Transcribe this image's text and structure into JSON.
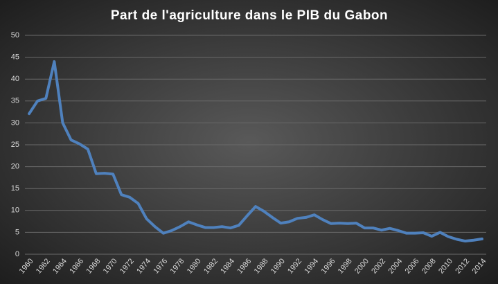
{
  "chart_data": {
    "type": "line",
    "title": "Part de l'agriculture  dans le PIB du Gabon",
    "categories": [
      "1960",
      null,
      "1962",
      null,
      "1964",
      null,
      "1966",
      null,
      "1968",
      null,
      "1970",
      null,
      "1972",
      null,
      "1974",
      null,
      "1976",
      null,
      "1978",
      null,
      "1980",
      null,
      "1982",
      null,
      "1984",
      null,
      "1986",
      null,
      "1988",
      null,
      "1990",
      null,
      "1992",
      null,
      "1994",
      null,
      "1996",
      null,
      "1998",
      null,
      "2000",
      null,
      "2002",
      null,
      "2004",
      null,
      "2006",
      null,
      "2008",
      null,
      "2010",
      null,
      "2012",
      null,
      "2014"
    ],
    "values": [
      32.1,
      35,
      35.6,
      44,
      30,
      26.1,
      25.2,
      24,
      18.4,
      18.5,
      18.3,
      13.6,
      13,
      11.6,
      8.1,
      6.3,
      4.8,
      5.4,
      6.3,
      7.4,
      6.7,
      6.1,
      6.1,
      6.3,
      6,
      6.6,
      8.8,
      10.9,
      9.8,
      8.4,
      7.1,
      7.4,
      8.2,
      8.4,
      9,
      7.9,
      7,
      7.1,
      7,
      7.1,
      6,
      6,
      5.5,
      5.9,
      5.4,
      4.8,
      4.8,
      4.9,
      4.1,
      5,
      4,
      3.4,
      3,
      3.2,
      3.5
    ],
    "color": "#4f81bd",
    "ylim": [
      0,
      50
    ],
    "yticks": [
      0,
      5,
      10,
      15,
      20,
      25,
      30,
      35,
      40,
      45,
      50
    ],
    "grid": true
  }
}
